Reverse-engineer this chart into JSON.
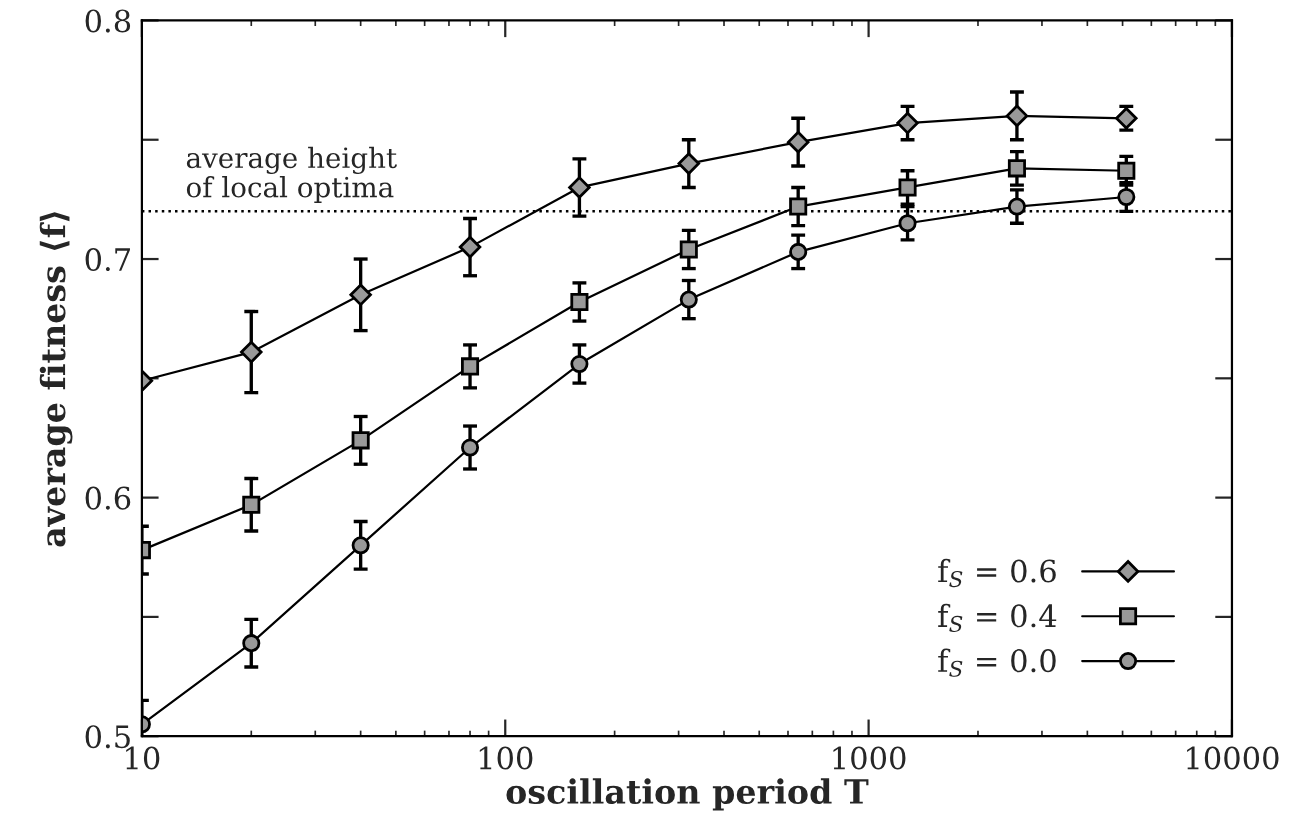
{
  "chart_data": {
    "type": "line",
    "xlabel": "oscillation period T",
    "ylabel": "average fitness ⟨f⟩",
    "x": [
      10,
      20,
      40,
      80,
      160,
      320,
      640,
      1280,
      2560,
      5120
    ],
    "series": [
      {
        "name": "f$_{S}$ = 0.6",
        "color": "#999999",
        "marker": "diamond",
        "values": [
          0.649,
          0.661,
          0.685,
          0.705,
          0.73,
          0.74,
          0.749,
          0.757,
          0.76,
          0.759
        ],
        "errors": [
          null,
          0.017,
          0.015,
          0.012,
          0.012,
          0.01,
          0.01,
          0.007,
          0.01,
          0.005
        ]
      },
      {
        "name": "f$_{S}$ = 0.4",
        "color": "#999999",
        "marker": "square",
        "values": [
          0.578,
          0.597,
          0.624,
          0.655,
          0.682,
          0.704,
          0.722,
          0.73,
          0.738,
          0.737
        ],
        "errors": [
          0.01,
          0.011,
          0.01,
          0.009,
          0.008,
          0.008,
          0.008,
          0.007,
          0.007,
          0.006
        ]
      },
      {
        "name": "f$_{S}$ = 0.0",
        "color": "#999999",
        "marker": "circle",
        "values": [
          0.505,
          0.539,
          0.58,
          0.621,
          0.656,
          0.683,
          0.703,
          0.715,
          0.722,
          0.726
        ],
        "errors": [
          0.01,
          0.01,
          0.01,
          0.009,
          0.008,
          0.008,
          0.007,
          0.007,
          0.007,
          0.006
        ]
      }
    ],
    "log": "x",
    "xlim": [
      10,
      10000
    ],
    "xticks": [
      10,
      100,
      1000,
      10000
    ],
    "ylim": [
      0.5,
      0.8
    ],
    "yticks": [
      0.5,
      {
        "value": 0.55,
        "label": null
      },
      0.6,
      {
        "value": 0.65,
        "label": null
      },
      0.7,
      {
        "value": 0.75,
        "label": null
      },
      0.8
    ],
    "ref_lines": [
      {
        "axis": "y",
        "value": 0.72,
        "label": "average height\nof local optima",
        "line_style": "dotted",
        "color": "#000000"
      }
    ],
    "legend": "bottom right",
    "grid": false
  }
}
